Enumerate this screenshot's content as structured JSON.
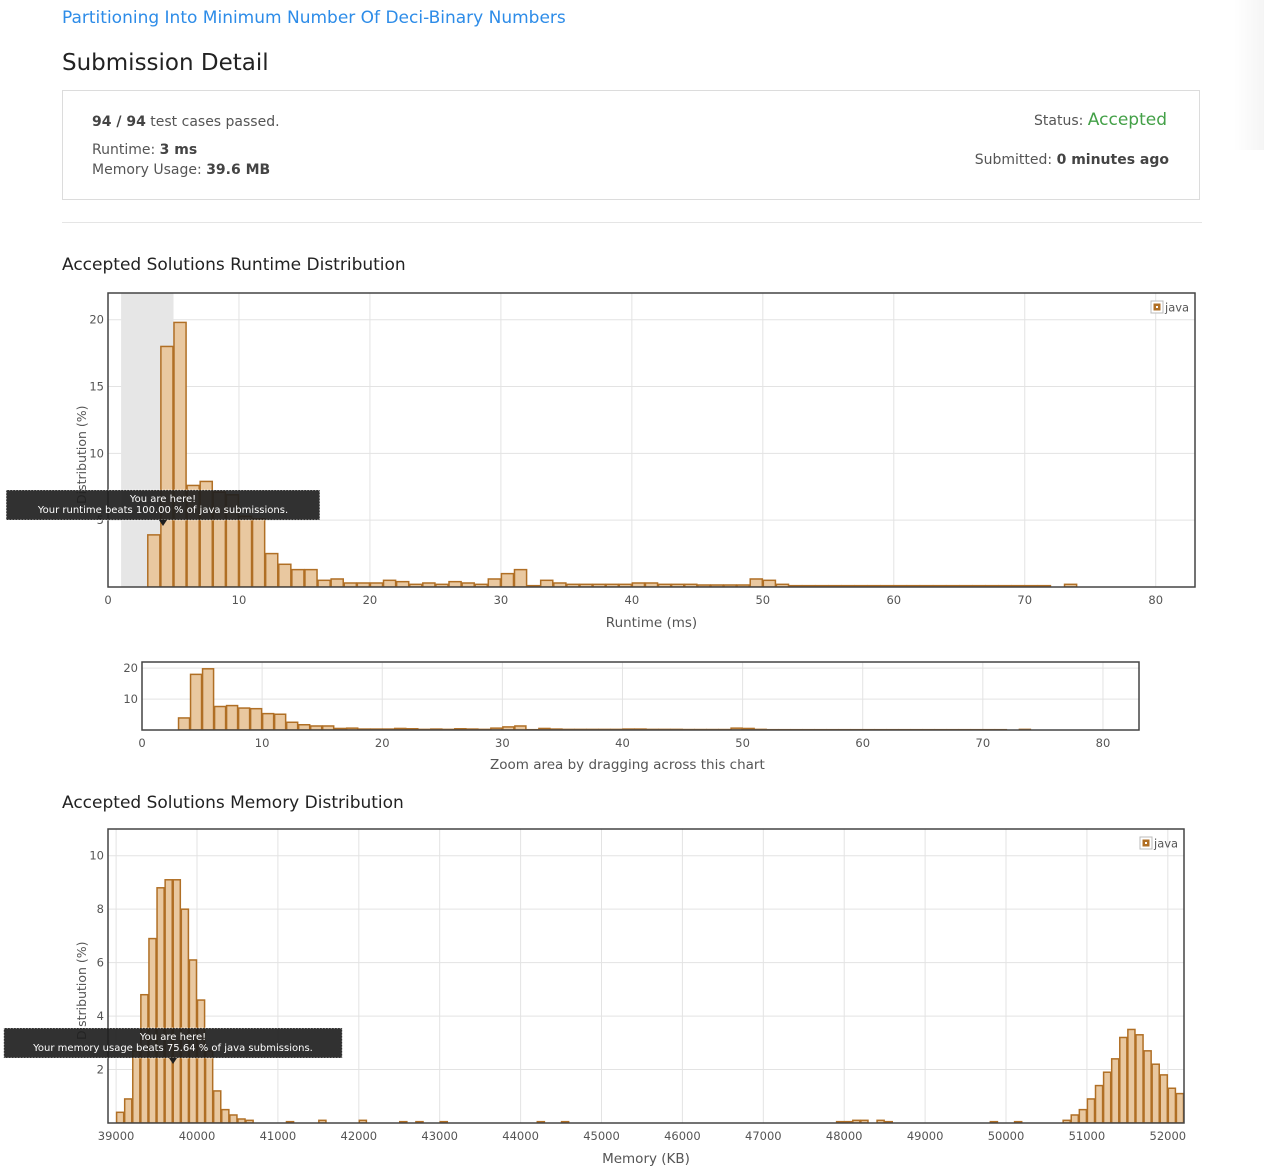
{
  "problem": {
    "title": "Partitioning Into Minimum Number Of Deci-Binary Numbers"
  },
  "page": {
    "title": "Submission Detail"
  },
  "summary": {
    "passed": "94 / 94",
    "passed_suffix": "test cases passed.",
    "runtime_label": "Runtime:",
    "runtime_value": "3 ms",
    "memory_label": "Memory Usage:",
    "memory_value": "39.6 MB",
    "status_label": "Status:",
    "status_value": "Accepted",
    "submitted_label": "Submitted:",
    "submitted_value": "0 minutes ago"
  },
  "colors": {
    "bar_fill": "#e9c8a0",
    "bar_stroke": "#b06f25",
    "link": "#2d8ce8",
    "accepted": "#43a047"
  },
  "runtime": {
    "section_title": "Accepted Solutions Runtime Distribution",
    "zoom_label": "Zoom area by dragging across this chart",
    "tooltip": {
      "line1": "You are here!",
      "line2": "Your runtime beats 100.00 % of java submissions."
    }
  },
  "memory": {
    "section_title": "Accepted Solutions Memory Distribution",
    "tooltip": {
      "line1": "You are here!",
      "line2": "Your memory usage beats 75.64 % of java submissions."
    }
  },
  "chart_data": [
    {
      "type": "bar",
      "xlabel": "Runtime (ms)",
      "ylabel": "Distribution (%)",
      "xlim": [
        0,
        83
      ],
      "ylim": [
        0,
        22
      ],
      "xticks": [
        "0",
        "10",
        "20",
        "30",
        "40",
        "50",
        "60",
        "70",
        "80"
      ],
      "yticks": [
        "5",
        "10",
        "15",
        "20"
      ],
      "legend": "java",
      "legend_position": "top-right",
      "grid": true,
      "highlight_range": [
        1,
        5
      ],
      "bin_width": 1,
      "series": [
        {
          "name": "java",
          "x": [
            3,
            4,
            5,
            6,
            7,
            8,
            9,
            10,
            11,
            12,
            13,
            14,
            15,
            16,
            17,
            18,
            19,
            20,
            21,
            22,
            23,
            24,
            25,
            26,
            27,
            28,
            29,
            30,
            31,
            32,
            33,
            34,
            35,
            36,
            37,
            38,
            39,
            40,
            41,
            42,
            43,
            44,
            45,
            46,
            47,
            48,
            49,
            50,
            51,
            52,
            53,
            54,
            55,
            56,
            57,
            58,
            59,
            60,
            61,
            62,
            63,
            64,
            65,
            66,
            67,
            68,
            69,
            70,
            71,
            73
          ],
          "values": [
            3.9,
            18,
            19.8,
            7.6,
            7.9,
            7.1,
            6.9,
            5.3,
            5.1,
            2.5,
            1.7,
            1.3,
            1.3,
            0.5,
            0.6,
            0.3,
            0.3,
            0.3,
            0.5,
            0.4,
            0.2,
            0.3,
            0.2,
            0.4,
            0.3,
            0.2,
            0.6,
            1.0,
            1.3,
            0.1,
            0.5,
            0.3,
            0.2,
            0.2,
            0.2,
            0.2,
            0.2,
            0.3,
            0.3,
            0.2,
            0.2,
            0.2,
            0.15,
            0.15,
            0.15,
            0.15,
            0.6,
            0.5,
            0.2,
            0.1,
            0.1,
            0.1,
            0.1,
            0.1,
            0.1,
            0.1,
            0.1,
            0.1,
            0.1,
            0.1,
            0.1,
            0.1,
            0.1,
            0.1,
            0.1,
            0.1,
            0.1,
            0.1,
            0.1,
            0.2
          ]
        }
      ]
    },
    {
      "type": "bar",
      "xlabel": "",
      "ylabel": "",
      "xlim": [
        0,
        83
      ],
      "ylim": [
        0,
        22
      ],
      "xticks": [
        "0",
        "10",
        "20",
        "30",
        "40",
        "50",
        "60",
        "70",
        "80"
      ],
      "yticks": [
        "10",
        "20"
      ],
      "grid": true,
      "bin_width": 1,
      "series": [
        {
          "x": [
            3,
            4,
            5,
            6,
            7,
            8,
            9,
            10,
            11,
            12,
            13,
            14,
            15,
            16,
            17,
            18,
            19,
            20,
            21,
            22,
            23,
            24,
            25,
            26,
            27,
            28,
            29,
            30,
            31,
            32,
            33,
            34,
            35,
            36,
            37,
            38,
            39,
            40,
            41,
            42,
            43,
            44,
            45,
            46,
            47,
            48,
            49,
            50,
            51,
            52,
            53,
            54,
            55,
            56,
            57,
            58,
            59,
            60,
            61,
            62,
            63,
            64,
            65,
            66,
            67,
            68,
            69,
            70,
            71,
            73
          ],
          "values": [
            3.9,
            18,
            19.8,
            7.6,
            7.9,
            7.1,
            6.9,
            5.3,
            5.1,
            2.5,
            1.7,
            1.3,
            1.3,
            0.5,
            0.6,
            0.3,
            0.3,
            0.3,
            0.5,
            0.4,
            0.2,
            0.3,
            0.2,
            0.4,
            0.3,
            0.2,
            0.6,
            1.0,
            1.3,
            0.1,
            0.5,
            0.3,
            0.2,
            0.2,
            0.2,
            0.2,
            0.2,
            0.3,
            0.3,
            0.2,
            0.2,
            0.2,
            0.15,
            0.15,
            0.15,
            0.15,
            0.6,
            0.5,
            0.2,
            0.1,
            0.1,
            0.1,
            0.1,
            0.1,
            0.1,
            0.1,
            0.1,
            0.1,
            0.1,
            0.1,
            0.1,
            0.1,
            0.1,
            0.1,
            0.1,
            0.1,
            0.1,
            0.1,
            0.1,
            0.2
          ]
        }
      ]
    },
    {
      "type": "bar",
      "xlabel": "Memory (KB)",
      "ylabel": "Distribution (%)",
      "xlim": [
        38900,
        52200
      ],
      "ylim": [
        0,
        11
      ],
      "xticks": [
        "39000",
        "40000",
        "41000",
        "42000",
        "43000",
        "44000",
        "45000",
        "46000",
        "47000",
        "48000",
        "49000",
        "50000",
        "51000",
        "52000"
      ],
      "yticks": [
        "2",
        "4",
        "6",
        "8",
        "10"
      ],
      "legend": "java",
      "legend_position": "top-right",
      "grid": true,
      "bin_width": 100,
      "series": [
        {
          "name": "java",
          "x": [
            39000,
            39100,
            39200,
            39300,
            39400,
            39500,
            39600,
            39700,
            39800,
            39900,
            40000,
            40100,
            40200,
            40300,
            40400,
            40500,
            40600,
            41100,
            41500,
            42000,
            42500,
            42700,
            43000,
            44200,
            44500,
            47900,
            48000,
            48100,
            48200,
            48400,
            48500,
            49800,
            50100,
            50700,
            50800,
            50900,
            51000,
            51100,
            51200,
            51300,
            51400,
            51500,
            51600,
            51700,
            51800,
            51900,
            52000,
            52100
          ],
          "values": [
            0.4,
            0.9,
            2.7,
            4.8,
            6.9,
            8.8,
            9.1,
            9.1,
            8.0,
            6.1,
            4.6,
            2.7,
            1.2,
            0.5,
            0.3,
            0.15,
            0.1,
            0.05,
            0.1,
            0.1,
            0.05,
            0.05,
            0.05,
            0.05,
            0.05,
            0.05,
            0.05,
            0.1,
            0.1,
            0.1,
            0.05,
            0.05,
            0.05,
            0.1,
            0.3,
            0.5,
            0.9,
            1.4,
            1.9,
            2.4,
            3.2,
            3.5,
            3.3,
            2.7,
            2.2,
            1.8,
            1.3,
            1.1
          ]
        }
      ]
    }
  ]
}
